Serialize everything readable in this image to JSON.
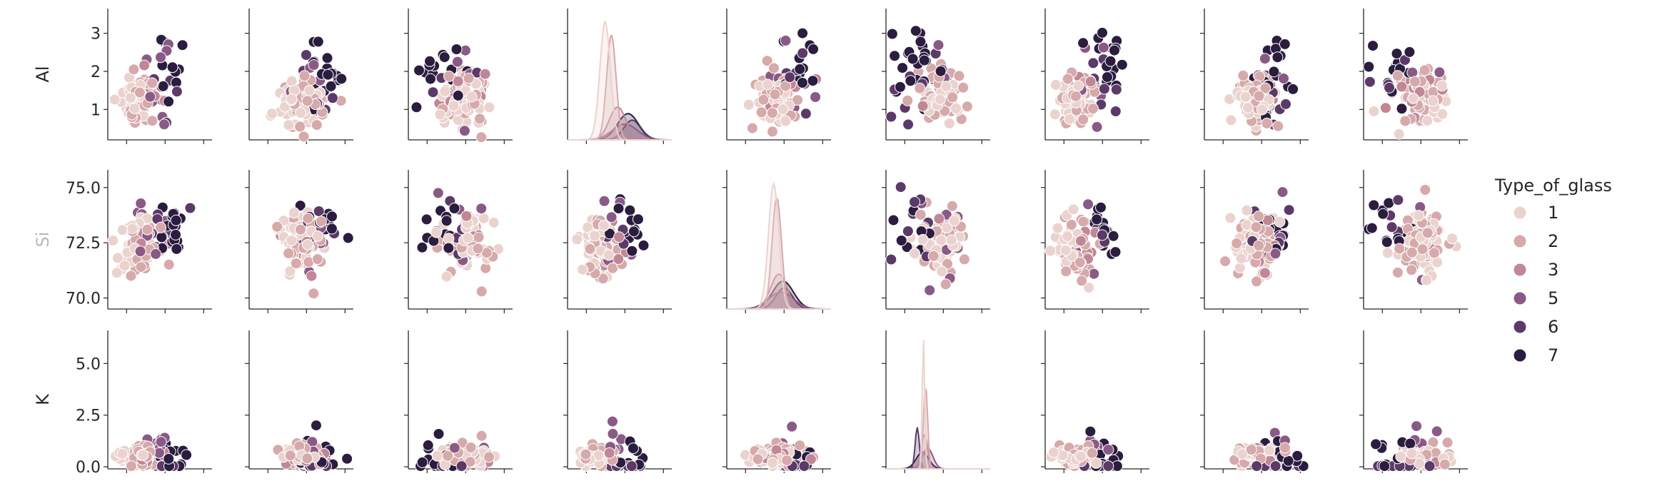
{
  "chart_data": {
    "type": "scatter",
    "rows": [
      {
        "label": "Al",
        "label_faded": false,
        "ylim": [
          0.2,
          3.65
        ],
        "ticks": [
          1,
          2,
          3
        ],
        "tick_labels": [
          "1",
          "2",
          "3"
        ]
      },
      {
        "label": "Si",
        "label_faded": true,
        "ylim": [
          69.5,
          75.8
        ],
        "ticks": [
          70.0,
          72.5,
          75.0
        ],
        "tick_labels": [
          "70.0",
          "72.5",
          "75.0"
        ]
      },
      {
        "label": "K",
        "label_faded": false,
        "ylim": [
          -0.1,
          6.6
        ],
        "ticks": [
          0.0,
          2.5,
          5.0
        ],
        "tick_labels": [
          "0.0",
          "2.5",
          "5.0"
        ]
      }
    ],
    "column_count": 9,
    "diagonal_panels": {
      "Al": 3,
      "Si": 4,
      "K": 5
    },
    "legend": {
      "title": "Type_of_glass",
      "placement": "right",
      "items": [
        {
          "label": "1",
          "color": "#ead3cf"
        },
        {
          "label": "2",
          "color": "#d6a9aa"
        },
        {
          "label": "3",
          "color": "#c08796"
        },
        {
          "label": "5",
          "color": "#8a5a86"
        },
        {
          "label": "6",
          "color": "#5c3a68"
        },
        {
          "label": "7",
          "color": "#2b1d3f"
        }
      ]
    },
    "grid": false
  }
}
